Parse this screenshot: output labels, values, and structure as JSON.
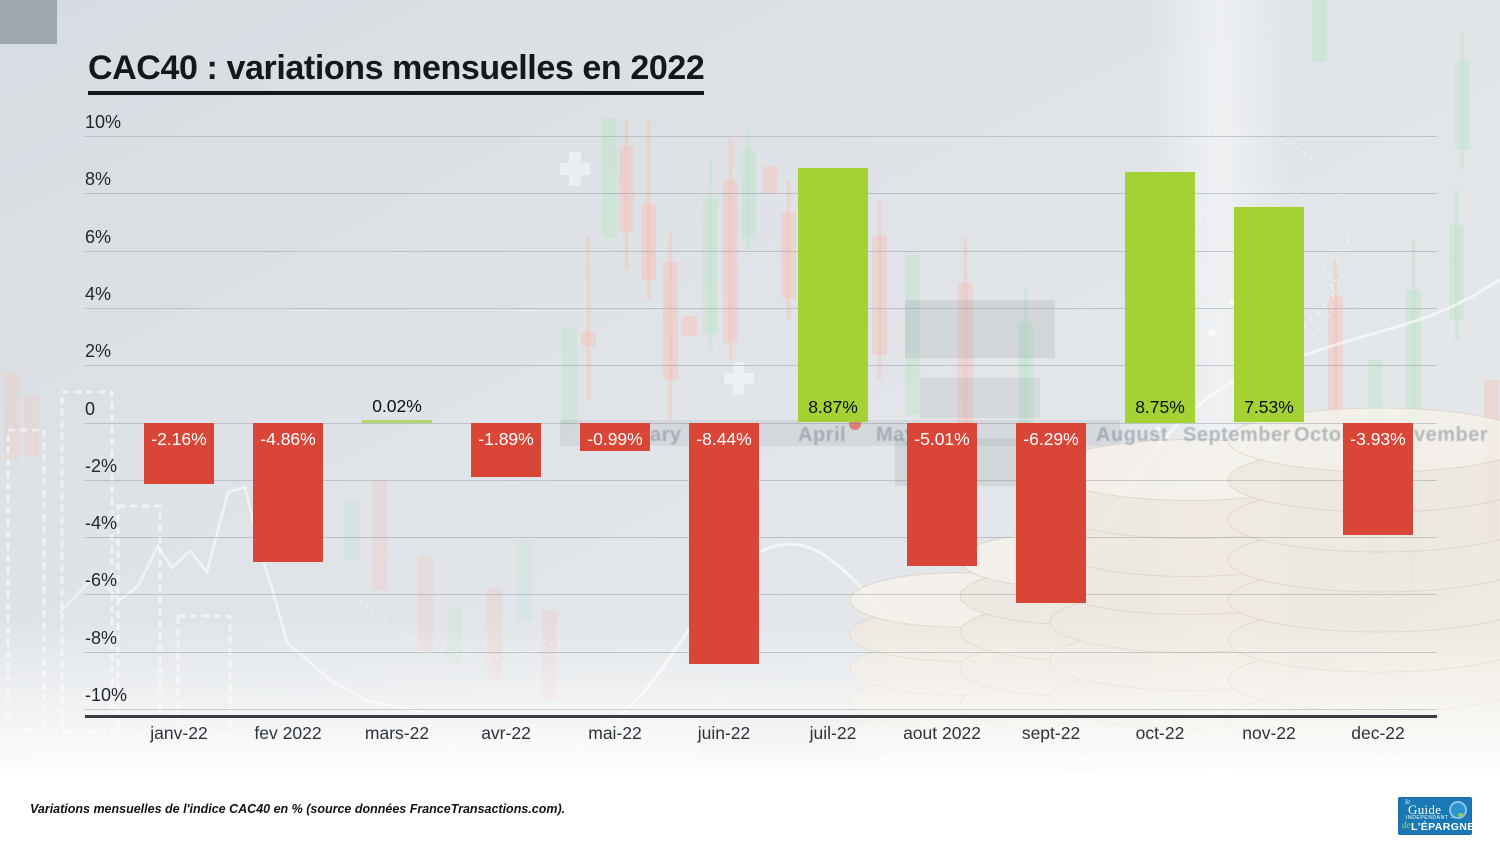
{
  "title": "CAC40 : variations mensuelles en 2022",
  "chart_data": {
    "type": "bar",
    "title": "CAC40 : variations mensuelles en 2022",
    "categories": [
      "janv-22",
      "fev 2022",
      "mars-22",
      "avr-22",
      "mai-22",
      "juin-22",
      "juil-22",
      "aout 2022",
      "sept-22",
      "oct-22",
      "nov-22",
      "dec-22"
    ],
    "values": [
      -2.16,
      -4.86,
      0.02,
      -1.89,
      -0.99,
      -8.44,
      8.87,
      -5.01,
      -6.29,
      8.75,
      7.53,
      -3.93
    ],
    "value_labels": [
      "-2.16%",
      "-4.86%",
      "0.02%",
      "-1.89%",
      "-0.99%",
      "-8.44%",
      "8.87%",
      "-5.01%",
      "-6.29%",
      "8.75%",
      "7.53%",
      "-3.93%"
    ],
    "y_ticks": [
      "10%",
      "8%",
      "6%",
      "4%",
      "2%",
      "0",
      "-2%",
      "-4%",
      "-6%",
      "-8%",
      "-10%"
    ],
    "ylim": [
      -10,
      10
    ],
    "ylabel": "",
    "xlabel": "",
    "grid": true,
    "legend": "none",
    "positive_color": "#a4d133",
    "negative_color": "#d94536",
    "tiny_bar_color": "#b5d76f",
    "unit": "%"
  },
  "background": {
    "watermark_fragments": [
      "ary",
      "April",
      "May",
      "August",
      "September",
      "Octob",
      "vember"
    ]
  },
  "footer": {
    "caption": "Variations mensuelles de l'indice CAC40 en % (source données FranceTransactions.com).",
    "logo": {
      "le": "le",
      "guide": "Guide",
      "independant": "INDÉPENDANT —",
      "de": "de",
      "epargne": "L'ÉPARGNE",
      "bg_color": "#1a79b4"
    }
  }
}
